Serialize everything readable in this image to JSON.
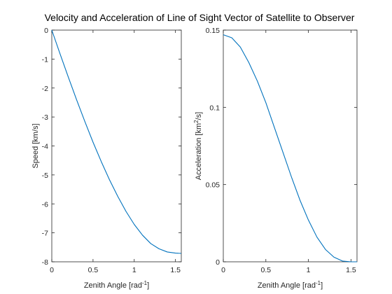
{
  "figure_title": "Velocity and Acceleration of Line of Sight Vector of  Satellite to Observer",
  "chart_data": [
    {
      "type": "line",
      "title": "",
      "xlabel_main": "Zenith Angle [rad",
      "xlabel_sup": "-1",
      "xlabel_end": "]",
      "ylabel_main": "Speed [km/s]",
      "ylabel_sup": "",
      "ylabel_end": "",
      "xlim": [
        0,
        1.5708
      ],
      "ylim": [
        -8,
        0
      ],
      "xticks": [
        0,
        0.5,
        1,
        1.5
      ],
      "xtick_labels": [
        "0",
        "0.5",
        "1",
        "1.5"
      ],
      "yticks": [
        0,
        -1,
        -2,
        -3,
        -4,
        -5,
        -6,
        -7,
        -8
      ],
      "ytick_labels": [
        "0",
        "-1",
        "-2",
        "-3",
        "-4",
        "-5",
        "-6",
        "-7",
        "-8"
      ],
      "grid": false,
      "series_color": "#0072BD",
      "series": [
        {
          "x": [
            0,
            0.1,
            0.2,
            0.3,
            0.4,
            0.5,
            0.6,
            0.7,
            0.8,
            0.9,
            1.0,
            1.1,
            1.2,
            1.3,
            1.4,
            1.5,
            1.5708
          ],
          "values": [
            0,
            -0.82,
            -1.62,
            -2.4,
            -3.15,
            -3.87,
            -4.54,
            -5.17,
            -5.74,
            -6.26,
            -6.71,
            -7.08,
            -7.37,
            -7.55,
            -7.66,
            -7.7,
            -7.71
          ]
        }
      ]
    },
    {
      "type": "line",
      "title": "",
      "xlabel_main": "Zenith Angle [rad",
      "xlabel_sup": "-1",
      "xlabel_end": "]",
      "ylabel_main": "Acceleration [km",
      "ylabel_sup": "2",
      "ylabel_end": "/s]",
      "xlim": [
        0,
        1.5708
      ],
      "ylim": [
        0,
        0.15
      ],
      "xticks": [
        0,
        0.5,
        1,
        1.5
      ],
      "xtick_labels": [
        "0",
        "0.5",
        "1",
        "1.5"
      ],
      "yticks": [
        0,
        0.05,
        0.1,
        0.15
      ],
      "ytick_labels": [
        "0",
        "0.05",
        "0.1",
        "0.15"
      ],
      "grid": false,
      "series_color": "#0072BD",
      "series": [
        {
          "x": [
            0,
            0.1,
            0.2,
            0.3,
            0.4,
            0.5,
            0.6,
            0.7,
            0.8,
            0.9,
            1.0,
            1.1,
            1.2,
            1.3,
            1.4,
            1.5,
            1.5708
          ],
          "values": [
            0.147,
            0.145,
            0.139,
            0.129,
            0.117,
            0.103,
            0.087,
            0.071,
            0.055,
            0.04,
            0.027,
            0.016,
            0.008,
            0.003,
            0.0005,
            0.0,
            0.0
          ]
        }
      ]
    }
  ]
}
